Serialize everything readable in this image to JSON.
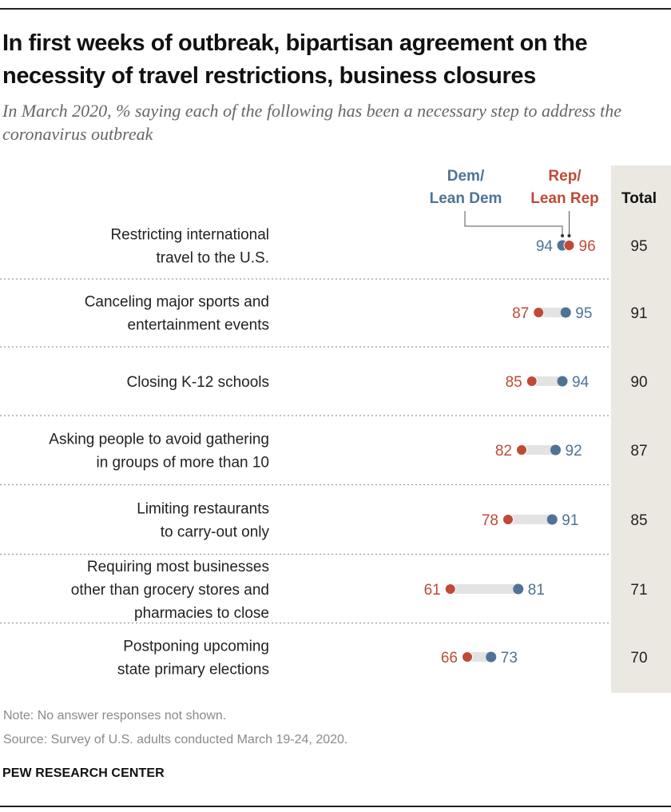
{
  "title": "In first weeks of outbreak, bipartisan agreement on the necessity of travel restrictions, business closures",
  "subtitle": "In March 2020, % saying each of the following has been a necessary step to address the coronavirus outbreak",
  "note": "Note: No answer responses not shown.",
  "source": "Source: Survey of U.S. adults conducted March 19-24, 2020.",
  "brand": "PEW RESEARCH CENTER",
  "colors": {
    "dem": "#4f7394",
    "rep": "#bf4a36",
    "range_bar": "#e3e3e3",
    "total_column": "#ebe8e1"
  },
  "chart_data": {
    "type": "dot",
    "legend": {
      "dem": [
        "Dem/",
        "Lean Dem"
      ],
      "rep": [
        "Rep/",
        "Lean Rep"
      ],
      "total": "Total"
    },
    "categories": [
      [
        "Restricting international",
        "travel to the U.S."
      ],
      [
        "Canceling major sports and",
        "entertainment events"
      ],
      [
        "Closing K-12 schools"
      ],
      [
        "Asking people to avoid gathering",
        "in groups of more than 10"
      ],
      [
        "Limiting restaurants",
        "to carry-out only"
      ],
      [
        "Requiring most businesses",
        "other than grocery stores and",
        "pharmacies to close"
      ],
      [
        "Postponing upcoming",
        "state primary elections"
      ]
    ],
    "series": [
      {
        "name": "Dem/Lean Dem",
        "values": [
          94,
          95,
          94,
          92,
          91,
          81,
          73
        ]
      },
      {
        "name": "Rep/Lean Rep",
        "values": [
          96,
          87,
          85,
          82,
          78,
          61,
          66
        ]
      }
    ],
    "total": [
      95,
      91,
      90,
      87,
      85,
      71,
      70
    ]
  }
}
